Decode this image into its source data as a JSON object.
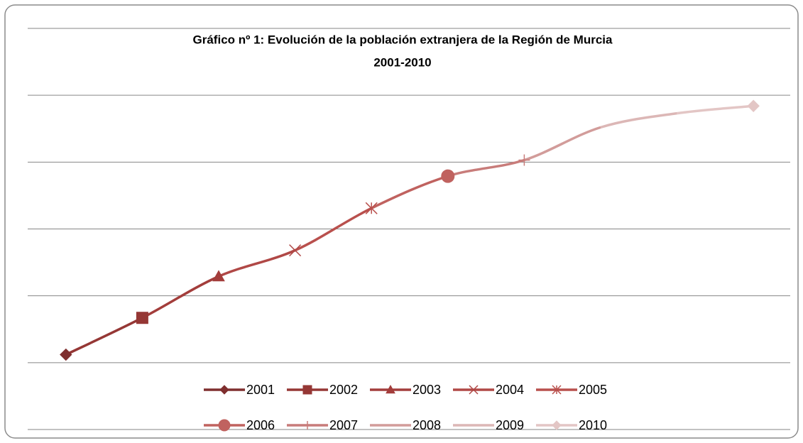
{
  "chart_data": {
    "type": "line",
    "title": [
      "Gráfico nº 1: Evolución de la población  extranjera de la Región de Murcia",
      "2001-2010"
    ],
    "series": [
      {
        "name": "2001",
        "color": "#7f2f2f",
        "marker": "diamond",
        "value": 0.12
      },
      {
        "name": "2002",
        "color": "#953735",
        "marker": "square",
        "value": 0.67
      },
      {
        "name": "2003",
        "color": "#a33d3b",
        "marker": "triangle",
        "value": 1.29
      },
      {
        "name": "2004",
        "color": "#b04846",
        "marker": "x",
        "value": 1.68
      },
      {
        "name": "2005",
        "color": "#b9504d",
        "marker": "star",
        "value": 2.31
      },
      {
        "name": "2006",
        "color": "#c0625f",
        "marker": "circle",
        "value": 2.79
      },
      {
        "name": "2007",
        "color": "#c87c7a",
        "marker": "plus",
        "value": 3.03
      },
      {
        "name": "2008",
        "color": "#d29c9a",
        "marker": "none",
        "value": 3.52
      },
      {
        "name": "2009",
        "color": "#dcb7b6",
        "marker": "none",
        "value": 3.73
      },
      {
        "name": "2010",
        "color": "#e3c6c5",
        "marker": "diamond",
        "value": 3.84
      }
    ],
    "ylim": [
      -1,
      5
    ],
    "yticks": [
      -1,
      0,
      1,
      2,
      3,
      4,
      5
    ],
    "grid": true,
    "smooth": true
  }
}
